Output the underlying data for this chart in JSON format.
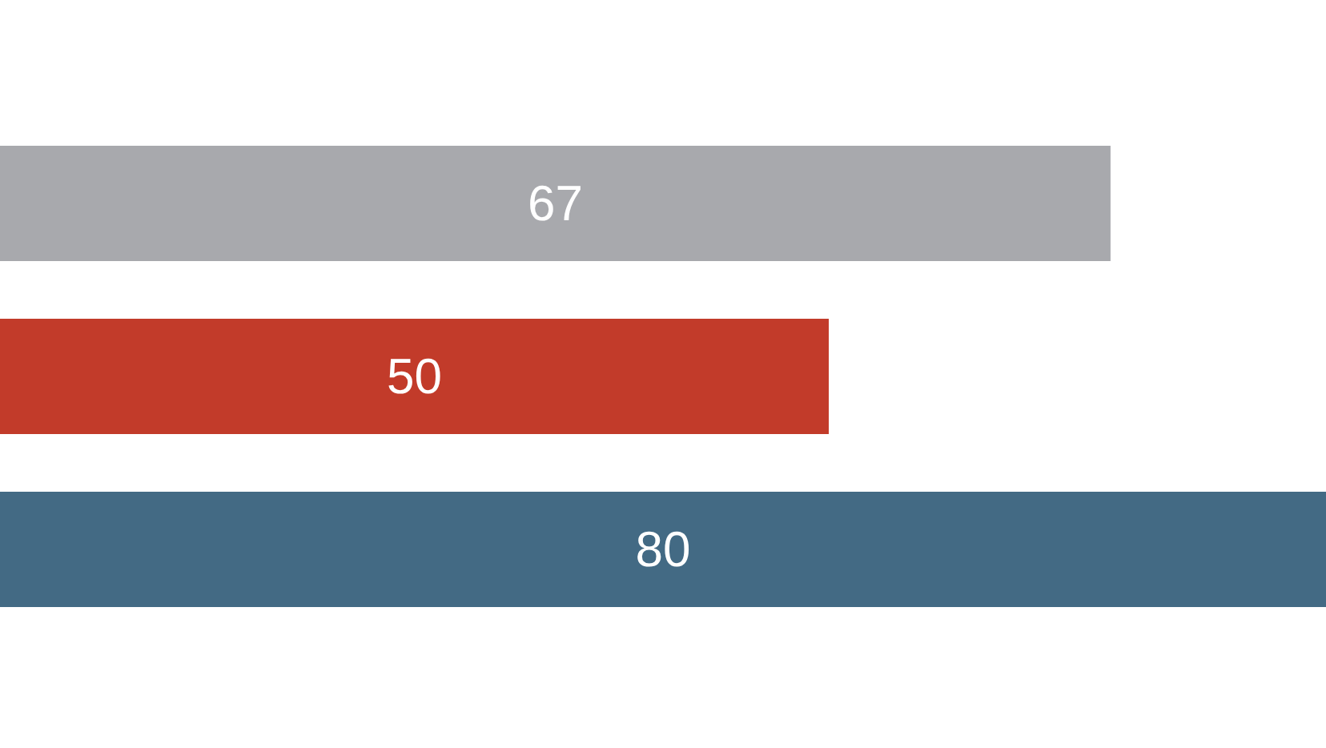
{
  "chart_data": {
    "type": "bar",
    "orientation": "horizontal",
    "categories": [
      null,
      null,
      null
    ],
    "values": [
      67,
      50,
      80
    ],
    "colors": [
      "#a8a9ad",
      "#c23b2a",
      "#436a84"
    ],
    "data_labels": true
  }
}
